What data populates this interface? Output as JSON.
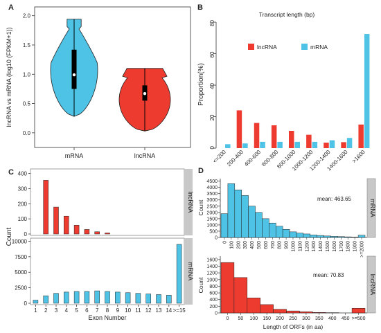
{
  "colors": {
    "mrna": "#4ec3e6",
    "lncrna": "#ee3b30",
    "strip": "#c8c8c8",
    "black": "#000000"
  },
  "chart_data": [
    {
      "panel": "A",
      "type": "violin",
      "ylabel": "lncRNA vs mRNA (log10 (FPKM+1))",
      "ylim": [
        -0.25,
        2.15
      ],
      "yticks": [
        "0.0",
        "0.5",
        "1.0",
        "1.5",
        "2.0"
      ],
      "categories": [
        "mRNA",
        "lncRNA"
      ],
      "series": [
        {
          "category": "mRNA",
          "min": 0.28,
          "q1": 0.75,
          "median": 0.99,
          "q3": 1.42,
          "max": 1.94
        },
        {
          "category": "lncRNA",
          "min": 0.03,
          "q1": 0.55,
          "median": 0.67,
          "q3": 0.81,
          "max": 1.1
        }
      ]
    },
    {
      "panel": "B",
      "type": "bar",
      "title": "Transcript length (bp)",
      "ylabel": "Proportion(%)",
      "ylim": [
        0,
        80
      ],
      "yticks": [
        "0",
        "20",
        "40",
        "60",
        "80"
      ],
      "categories": [
        "<=200",
        "200-400",
        "400-600",
        "600-800",
        "800-1000",
        "1000-1200",
        "1200-1400",
        "1400-1600",
        ">1600"
      ],
      "series": [
        {
          "name": "lncRNA",
          "values": [
            0,
            24,
            16,
            14.5,
            11,
            8.5,
            3.5,
            3.8,
            15
          ]
        },
        {
          "name": "mRNA",
          "values": [
            2.5,
            3,
            4,
            4,
            4,
            4,
            5,
            6.5,
            72.5
          ]
        }
      ],
      "legend": "top"
    },
    {
      "panel": "C",
      "type": "bar",
      "ylabel": "Count",
      "xlabel": "Exon Number",
      "categories": [
        "1",
        "2",
        "3",
        "4",
        "5",
        "6",
        "7",
        "8",
        "9",
        "10",
        "11",
        "12",
        "13",
        "14",
        ">=15"
      ],
      "facets": [
        {
          "strip": "lncRNA",
          "ylim": [
            0,
            430
          ],
          "yticks": [
            "0",
            "100",
            "200",
            "300",
            "400"
          ],
          "values": [
            0,
            355,
            178,
            118,
            58,
            30,
            15,
            7,
            0,
            0,
            0,
            0,
            0,
            0,
            0
          ]
        },
        {
          "strip": "mRNA",
          "ylim": [
            0,
            10500
          ],
          "yticks": [
            "0",
            "2500",
            "5000",
            "7500",
            "10000"
          ],
          "values": [
            500,
            1200,
            1600,
            1800,
            1900,
            1900,
            2000,
            1900,
            1800,
            1700,
            1600,
            1500,
            1400,
            1300,
            9500
          ]
        }
      ]
    },
    {
      "panel": "D",
      "type": "bar",
      "xlabel": "Length of ORFs (in aa)",
      "ylabel": "Count",
      "facets": [
        {
          "strip": "mRNA",
          "annotation": "mean: 463.65",
          "ylim": [
            0,
            4700
          ],
          "yticks": [
            "0",
            "500",
            "1000",
            "1500",
            "2000",
            "2500",
            "3000",
            "3500",
            "4000",
            "4500"
          ],
          "categories": [
            "0",
            "100",
            "200",
            "300",
            "400",
            "500",
            "600",
            "700",
            "800",
            "900",
            "1000",
            "1100",
            "1200",
            "1300",
            "1400",
            "1500",
            "1600",
            "1700",
            "1800",
            "1900",
            ">=2000"
          ],
          "values": [
            1900,
            4300,
            3800,
            3350,
            2500,
            2000,
            1500,
            1150,
            900,
            650,
            450,
            350,
            280,
            200,
            160,
            120,
            90,
            70,
            50,
            30,
            180
          ]
        },
        {
          "strip": "lncRNA",
          "annotation": "mean: 70.83",
          "ylim": [
            0,
            1700
          ],
          "yticks": [
            "0",
            "200",
            "400",
            "600",
            "800",
            "1000",
            "1200",
            "1400",
            "1600"
          ],
          "categories": [
            "0",
            "50",
            "100",
            "150",
            "200",
            "250",
            "300",
            "350",
            "400",
            "450",
            ">=500"
          ],
          "values": [
            1510,
            1060,
            450,
            250,
            110,
            60,
            35,
            15,
            8,
            0,
            140
          ]
        }
      ]
    }
  ]
}
